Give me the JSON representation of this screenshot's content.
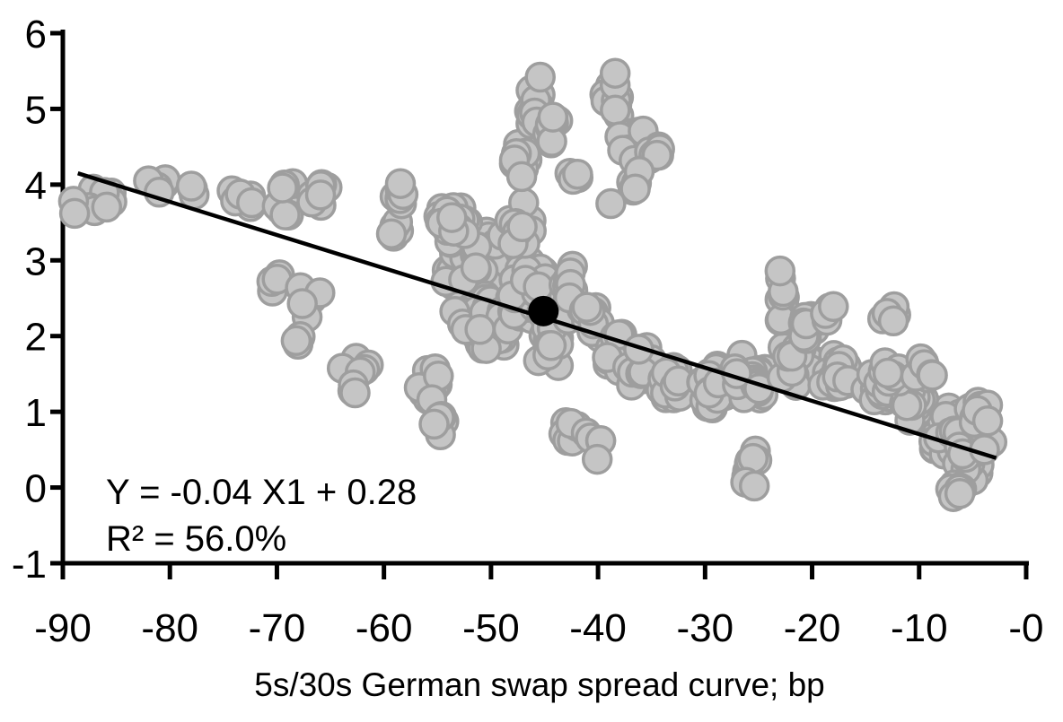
{
  "chart_data": {
    "type": "scatter",
    "title": "",
    "xlabel": "5s/30s German swap spread curve; bp",
    "ylabel": "",
    "xlim": [
      -90,
      0
    ],
    "ylim": [
      -1,
      6
    ],
    "grid": false,
    "legend": "none",
    "x_ticks": [
      {
        "value": -90,
        "label": "-90"
      },
      {
        "value": -80,
        "label": "-80"
      },
      {
        "value": -70,
        "label": "-70"
      },
      {
        "value": -60,
        "label": "-60"
      },
      {
        "value": -50,
        "label": "-50"
      },
      {
        "value": -40,
        "label": "-40"
      },
      {
        "value": -30,
        "label": "-30"
      },
      {
        "value": -20,
        "label": "-20"
      },
      {
        "value": -10,
        "label": "-10"
      },
      {
        "value": 0,
        "label": "-0"
      }
    ],
    "y_ticks": [
      {
        "value": 6,
        "label": "6"
      },
      {
        "value": 5,
        "label": "5"
      },
      {
        "value": 4,
        "label": "4"
      },
      {
        "value": 3,
        "label": "3"
      },
      {
        "value": 2,
        "label": "2"
      },
      {
        "value": 1,
        "label": "1"
      },
      {
        "value": 0,
        "label": "0"
      },
      {
        "value": -1,
        "label": "-1"
      }
    ],
    "annotation": {
      "line1": "Y = -0.04 X1 + 0.28",
      "line2": "R² = 56.0%"
    },
    "regression": {
      "equation_slope": -0.04,
      "equation_intercept": 0.28,
      "r_squared_pct": 56.0,
      "line_start": {
        "x": -88.6,
        "y": 4.15
      },
      "line_end": {
        "x": -2.8,
        "y": 0.39
      }
    },
    "highlight_point": {
      "x": -45.1,
      "y": 2.33
    },
    "scatter": {
      "seed": 12345,
      "approx_point_count": 810,
      "clusters": [
        [
          -86.8,
          3.8,
          1.6,
          0.22,
          9
        ],
        [
          -80.9,
          4.0,
          1.0,
          0.15,
          4
        ],
        [
          -77.9,
          3.95,
          0.5,
          0.1,
          2
        ],
        [
          -73.5,
          3.85,
          1.4,
          0.2,
          7
        ],
        [
          -69.5,
          3.8,
          1.3,
          0.25,
          8
        ],
        [
          -66.0,
          3.8,
          1.2,
          0.25,
          7
        ],
        [
          -70.2,
          2.8,
          0.8,
          0.25,
          4
        ],
        [
          -67.0,
          2.45,
          1.6,
          0.3,
          5
        ],
        [
          -68.2,
          1.95,
          0.4,
          0.12,
          2
        ],
        [
          -62.5,
          1.65,
          1.6,
          0.25,
          8
        ],
        [
          -62.7,
          1.3,
          0.4,
          0.1,
          2
        ],
        [
          -59.0,
          3.4,
          0.8,
          0.2,
          4
        ],
        [
          -58.5,
          3.85,
          1.2,
          0.2,
          6
        ],
        [
          -51.5,
          2.9,
          3.2,
          0.55,
          90
        ],
        [
          -50.5,
          2.2,
          3.0,
          0.45,
          60
        ],
        [
          -46.5,
          2.6,
          1.8,
          0.5,
          45
        ],
        [
          -53.5,
          3.5,
          2.2,
          0.3,
          25
        ],
        [
          -47.5,
          3.5,
          1.5,
          0.3,
          15
        ],
        [
          -55.5,
          1.35,
          1.6,
          0.35,
          12
        ],
        [
          -54.5,
          0.85,
          1.0,
          0.2,
          5
        ],
        [
          -44.5,
          1.9,
          1.2,
          0.35,
          12
        ],
        [
          -47.3,
          4.35,
          0.9,
          0.35,
          10
        ],
        [
          -45.8,
          5.0,
          0.8,
          0.3,
          12
        ],
        [
          -44.3,
          4.75,
          0.7,
          0.3,
          8
        ],
        [
          -42.3,
          4.15,
          0.6,
          0.2,
          4
        ],
        [
          -38.7,
          5.1,
          1.0,
          0.3,
          12
        ],
        [
          -36.8,
          4.55,
          1.3,
          0.35,
          16
        ],
        [
          -34.5,
          4.35,
          0.8,
          0.25,
          8
        ],
        [
          -36.5,
          4.0,
          0.8,
          0.2,
          5
        ],
        [
          -42.5,
          2.6,
          1.2,
          0.4,
          18
        ],
        [
          -40.5,
          2.2,
          1.2,
          0.35,
          15
        ],
        [
          -38.5,
          1.85,
          1.3,
          0.35,
          15
        ],
        [
          -36.0,
          1.6,
          1.5,
          0.3,
          15
        ],
        [
          -33.0,
          1.35,
          1.8,
          0.35,
          25
        ],
        [
          -29.5,
          1.3,
          1.8,
          0.35,
          25
        ],
        [
          -25.5,
          1.45,
          1.8,
          0.35,
          25
        ],
        [
          -21.5,
          1.6,
          1.8,
          0.35,
          25
        ],
        [
          -17.5,
          1.45,
          1.8,
          0.35,
          25
        ],
        [
          -13.8,
          1.3,
          1.5,
          0.3,
          20
        ],
        [
          -22.9,
          2.5,
          0.4,
          0.35,
          8
        ],
        [
          -20.5,
          2.15,
          1.0,
          0.25,
          8
        ],
        [
          -18.5,
          2.35,
          0.8,
          0.2,
          5
        ],
        [
          -12.8,
          2.25,
          0.9,
          0.15,
          4
        ],
        [
          -25.5,
          0.3,
          1.4,
          0.25,
          9
        ],
        [
          -42.5,
          0.75,
          1.6,
          0.3,
          10
        ],
        [
          -40.0,
          0.5,
          0.8,
          0.2,
          4
        ],
        [
          -7.5,
          0.75,
          2.2,
          0.4,
          45
        ],
        [
          -5.5,
          0.35,
          1.5,
          0.3,
          25
        ],
        [
          -10.5,
          1.1,
          1.5,
          0.3,
          20
        ],
        [
          -4.5,
          1.0,
          1.0,
          0.25,
          12
        ],
        [
          -6.5,
          0.0,
          1.0,
          0.15,
          6
        ],
        [
          -12.5,
          1.5,
          1.2,
          0.25,
          10
        ],
        [
          -9.5,
          1.55,
          1.0,
          0.2,
          8
        ]
      ],
      "extra_points": [
        [
          -89.0,
          3.78
        ],
        [
          -88.9,
          3.62
        ],
        [
          -82.0,
          4.05
        ],
        [
          -81.0,
          3.9
        ],
        [
          -78.0,
          3.98
        ],
        [
          -68.2,
          1.94
        ],
        [
          -62.7,
          1.25
        ],
        [
          -59.3,
          3.35
        ],
        [
          -38.8,
          3.75
        ],
        [
          -45.4,
          5.42
        ],
        [
          -38.4,
          5.47
        ],
        [
          -23.0,
          2.86
        ],
        [
          -26.2,
          0.07
        ],
        [
          -25.4,
          0.02
        ],
        [
          -6.8,
          -0.12
        ],
        [
          -6.2,
          -0.08
        ],
        [
          -3.2,
          0.6
        ],
        [
          -3.6,
          0.88
        ],
        [
          -3.9,
          0.5
        ],
        [
          -13.0,
          2.3
        ],
        [
          -12.4,
          2.2
        ]
      ]
    },
    "style": {
      "background": "#ffffff",
      "point_fill": "#c5c5c5",
      "point_stroke": "#9e9e9e",
      "point_radius": 15.5,
      "point_stroke_width": 3.5,
      "highlight_color": "#000000",
      "highlight_radius": 17,
      "line_color": "#000000",
      "line_width": 4.5,
      "axis_color": "#000000",
      "axis_width": 5
    }
  }
}
